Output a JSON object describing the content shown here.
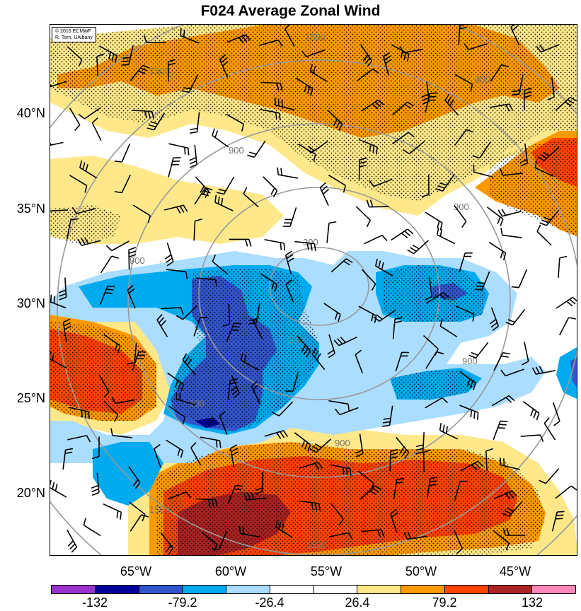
{
  "title": "F024 Average Zonal Wind",
  "credit": {
    "line1": "© 2016 ECMWF",
    "line2": "R. Torn, UAlbany"
  },
  "lat_labels": [
    "40°N",
    "35°N",
    "30°N",
    "25°N",
    "20°N"
  ],
  "lon_labels": [
    "65°W",
    "60°W",
    "55°W",
    "50°W",
    "45°W"
  ],
  "colorbar": {
    "colors": [
      "#9933cc",
      "#000099",
      "#3355cc",
      "#00aaee",
      "#aaddff",
      "#ffffff",
      "#ffffff",
      "#ffe88a",
      "#ff9900",
      "#ff4400",
      "#aa2222",
      "#ff88bb"
    ],
    "labels": [
      "-132",
      "-79.2",
      "-26.4",
      "26.4",
      "79.2",
      "132"
    ]
  },
  "contour_labels": [
    "1500",
    "1500",
    "900",
    "300",
    "900",
    "900",
    "900",
    "900",
    "1500",
    "1500",
    "300",
    "900",
    "900"
  ],
  "colors": {
    "orange": "#ff9900",
    "red_orange": "#ff4400",
    "dark_red": "#aa2222",
    "yellow": "#ffe88a",
    "light_blue": "#aaddff",
    "cyan": "#00aaee",
    "royal_blue": "#3355cc",
    "navy": "#000099",
    "gray_contour": "#999999"
  }
}
